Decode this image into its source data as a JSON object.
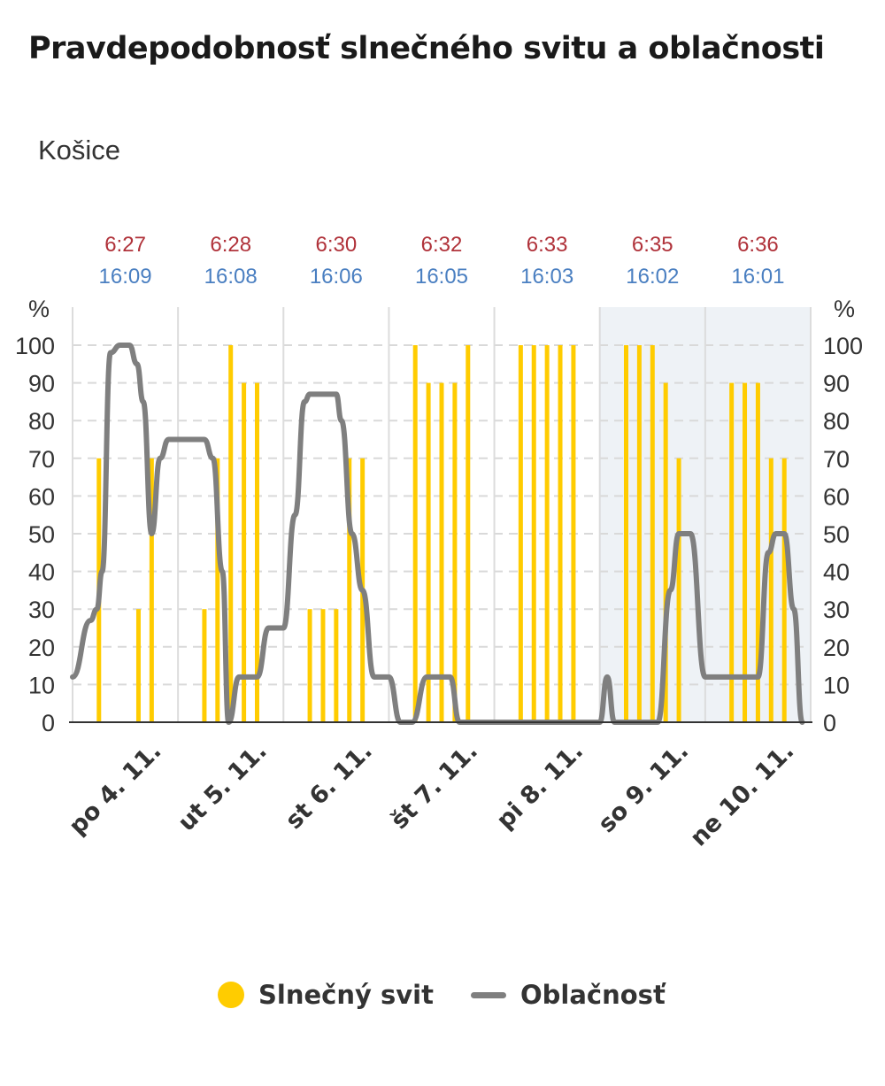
{
  "title": "Pravdepodobnosť slnečného svitu a oblačnosti",
  "subtitle": "Košice",
  "chart_data": {
    "type": "bar",
    "ylim": [
      0,
      100
    ],
    "y_unit_label": "%",
    "yticks": [
      0,
      10,
      20,
      30,
      40,
      50,
      60,
      70,
      80,
      90,
      100
    ],
    "grid": true,
    "legend_position": "bottom-center",
    "colors": {
      "sunshine": "#ffcc00",
      "cloudiness": "#7f7f7f",
      "sunrise": "#b0323a",
      "sunset": "#4a7fc1",
      "weekend_band": "#eef2f6"
    },
    "days": [
      {
        "label": "po 4. 11.",
        "sunrise": "6:27",
        "sunset": "16:09",
        "weekend": false
      },
      {
        "label": "ut 5. 11.",
        "sunrise": "6:28",
        "sunset": "16:08",
        "weekend": false
      },
      {
        "label": "st 6. 11.",
        "sunrise": "6:30",
        "sunset": "16:06",
        "weekend": false
      },
      {
        "label": "št 7. 11.",
        "sunrise": "6:32",
        "sunset": "16:05",
        "weekend": false
      },
      {
        "label": "pi 8. 11.",
        "sunrise": "6:33",
        "sunset": "16:03",
        "weekend": false
      },
      {
        "label": "so 9. 11.",
        "sunrise": "6:35",
        "sunset": "16:02",
        "weekend": true
      },
      {
        "label": "ne 10. 11.",
        "sunrise": "6:36",
        "sunset": "16:01",
        "weekend": true
      }
    ],
    "series": [
      {
        "name": "Slnečný svit",
        "type": "bar",
        "points": [
          {
            "x": 0.25,
            "y": 70
          },
          {
            "x": 0.625,
            "y": 30
          },
          {
            "x": 0.75,
            "y": 70
          },
          {
            "x": 1.25,
            "y": 30
          },
          {
            "x": 1.375,
            "y": 70
          },
          {
            "x": 1.5,
            "y": 100
          },
          {
            "x": 1.625,
            "y": 90
          },
          {
            "x": 1.75,
            "y": 90
          },
          {
            "x": 2.25,
            "y": 30
          },
          {
            "x": 2.375,
            "y": 30
          },
          {
            "x": 2.5,
            "y": 30
          },
          {
            "x": 2.625,
            "y": 70
          },
          {
            "x": 2.75,
            "y": 70
          },
          {
            "x": 3.25,
            "y": 100
          },
          {
            "x": 3.375,
            "y": 90
          },
          {
            "x": 3.5,
            "y": 90
          },
          {
            "x": 3.625,
            "y": 90
          },
          {
            "x": 3.75,
            "y": 100
          },
          {
            "x": 4.25,
            "y": 100
          },
          {
            "x": 4.375,
            "y": 100
          },
          {
            "x": 4.5,
            "y": 100
          },
          {
            "x": 4.625,
            "y": 100
          },
          {
            "x": 4.75,
            "y": 100
          },
          {
            "x": 5.25,
            "y": 100
          },
          {
            "x": 5.375,
            "y": 100
          },
          {
            "x": 5.5,
            "y": 100
          },
          {
            "x": 5.625,
            "y": 90
          },
          {
            "x": 5.75,
            "y": 70
          },
          {
            "x": 6.25,
            "y": 90
          },
          {
            "x": 6.375,
            "y": 90
          },
          {
            "x": 6.5,
            "y": 90
          },
          {
            "x": 6.625,
            "y": 70
          },
          {
            "x": 6.75,
            "y": 70
          }
        ]
      },
      {
        "name": "Oblačnosť",
        "type": "line",
        "points": [
          {
            "x": 0.0,
            "y": 12
          },
          {
            "x": 0.17,
            "y": 27
          },
          {
            "x": 0.23,
            "y": 30
          },
          {
            "x": 0.28,
            "y": 40
          },
          {
            "x": 0.36,
            "y": 98
          },
          {
            "x": 0.45,
            "y": 100
          },
          {
            "x": 0.54,
            "y": 100
          },
          {
            "x": 0.61,
            "y": 95
          },
          {
            "x": 0.67,
            "y": 85
          },
          {
            "x": 0.75,
            "y": 50
          },
          {
            "x": 0.83,
            "y": 70
          },
          {
            "x": 0.91,
            "y": 75
          },
          {
            "x": 1.25,
            "y": 75
          },
          {
            "x": 1.33,
            "y": 70
          },
          {
            "x": 1.42,
            "y": 40
          },
          {
            "x": 1.48,
            "y": 0
          },
          {
            "x": 1.58,
            "y": 12
          },
          {
            "x": 1.75,
            "y": 12
          },
          {
            "x": 1.86,
            "y": 25
          },
          {
            "x": 2.0,
            "y": 25
          },
          {
            "x": 2.11,
            "y": 55
          },
          {
            "x": 2.2,
            "y": 85
          },
          {
            "x": 2.25,
            "y": 87
          },
          {
            "x": 2.5,
            "y": 87
          },
          {
            "x": 2.55,
            "y": 80
          },
          {
            "x": 2.65,
            "y": 50
          },
          {
            "x": 2.75,
            "y": 35
          },
          {
            "x": 2.86,
            "y": 12
          },
          {
            "x": 3.0,
            "y": 12
          },
          {
            "x": 3.11,
            "y": 0
          },
          {
            "x": 3.22,
            "y": 0
          },
          {
            "x": 3.36,
            "y": 12
          },
          {
            "x": 3.58,
            "y": 12
          },
          {
            "x": 3.67,
            "y": 0
          },
          {
            "x": 5.0,
            "y": 0
          },
          {
            "x": 5.07,
            "y": 12
          },
          {
            "x": 5.14,
            "y": 0
          },
          {
            "x": 5.55,
            "y": 0
          },
          {
            "x": 5.67,
            "y": 35
          },
          {
            "x": 5.75,
            "y": 50
          },
          {
            "x": 5.86,
            "y": 50
          },
          {
            "x": 6.0,
            "y": 12
          },
          {
            "x": 6.5,
            "y": 12
          },
          {
            "x": 6.6,
            "y": 45
          },
          {
            "x": 6.67,
            "y": 50
          },
          {
            "x": 6.75,
            "y": 50
          },
          {
            "x": 6.84,
            "y": 30
          },
          {
            "x": 6.92,
            "y": 0
          }
        ]
      }
    ]
  },
  "legend": [
    {
      "name": "Slnečný svit"
    },
    {
      "name": "Oblačnosť"
    }
  ]
}
